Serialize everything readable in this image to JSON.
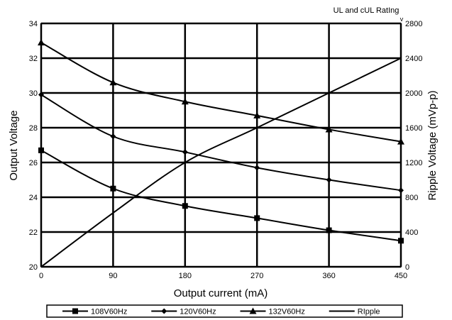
{
  "chart_data": {
    "type": "line",
    "annotation": "UL and cUL RatIng",
    "annotation_mark": "v",
    "xlabel": "Output current (mA)",
    "ylabel_left": "Output Voltage",
    "ylabel_right": "Ripple Voltage (mVp-p)",
    "x_ticks": [
      "0",
      "90",
      "180",
      "270",
      "360",
      "450"
    ],
    "y_left_ticks": [
      "20",
      "22",
      "24",
      "26",
      "28",
      "30",
      "32",
      "34"
    ],
    "y_right_ticks": [
      "0",
      "400",
      "800",
      "1200",
      "1600",
      "2000",
      "2400",
      "2800"
    ],
    "xlim": [
      0,
      450
    ],
    "ylim_left": [
      20,
      34
    ],
    "ylim_right": [
      0,
      2800
    ],
    "grid": true,
    "legend_position": "bottom",
    "series": [
      {
        "name": "108V60Hz",
        "axis": "left",
        "marker": "square",
        "x": [
          0,
          90,
          180,
          270,
          360,
          450
        ],
        "y": [
          26.7,
          24.5,
          23.5,
          22.8,
          22.1,
          21.5
        ]
      },
      {
        "name": "120V60Hz",
        "axis": "left",
        "marker": "diamond",
        "x": [
          0,
          90,
          180,
          270,
          360,
          450
        ],
        "y": [
          29.9,
          27.5,
          26.6,
          25.7,
          25.0,
          24.4
        ]
      },
      {
        "name": "132V60Hz",
        "axis": "left",
        "marker": "triangle",
        "x": [
          0,
          90,
          180,
          270,
          360,
          450
        ],
        "y": [
          32.9,
          30.6,
          29.5,
          28.7,
          27.9,
          27.2
        ]
      },
      {
        "name": "RIpple",
        "axis": "right",
        "marker": "none",
        "x": [
          0,
          90,
          180,
          270,
          360,
          450
        ],
        "y": [
          0,
          620,
          1200,
          1600,
          2000,
          2400
        ]
      }
    ]
  }
}
